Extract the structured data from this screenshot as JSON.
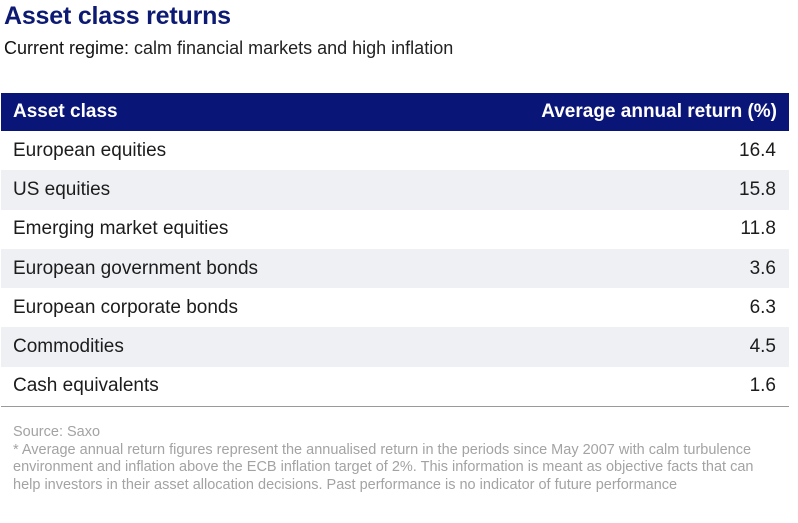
{
  "title": "Asset class returns",
  "subtitle_lead": "Current regime:",
  "subtitle_rest": " calm financial markets and high inflation",
  "chart_data": {
    "type": "table",
    "columns": [
      "Asset class",
      "Average annual return (%)"
    ],
    "rows": [
      {
        "asset": "European equities",
        "value": "16.4"
      },
      {
        "asset": "US equities",
        "value": "15.8"
      },
      {
        "asset": "Emerging market equities",
        "value": "11.8"
      },
      {
        "asset": "European government bonds",
        "value": "3.6"
      },
      {
        "asset": "European corporate bonds",
        "value": "6.3"
      },
      {
        "asset": "Commodities",
        "value": "4.5"
      },
      {
        "asset": "Cash equivalents",
        "value": "1.6"
      }
    ]
  },
  "source": "Source: Saxo",
  "footnote": "* Average annual return figures represent the annualised return in the periods since May 2007 with calm turbulence environment and inflation above the ECB inflation target of 2%. This information is meant as objective facts that can help investors in their asset allocation decisions. Past performance is no indicator of future performance",
  "colors": {
    "header_bg": "#0a1578",
    "title": "#0d1a73",
    "row_alt": "#eef0f4",
    "notes": "#a3a3a3"
  }
}
